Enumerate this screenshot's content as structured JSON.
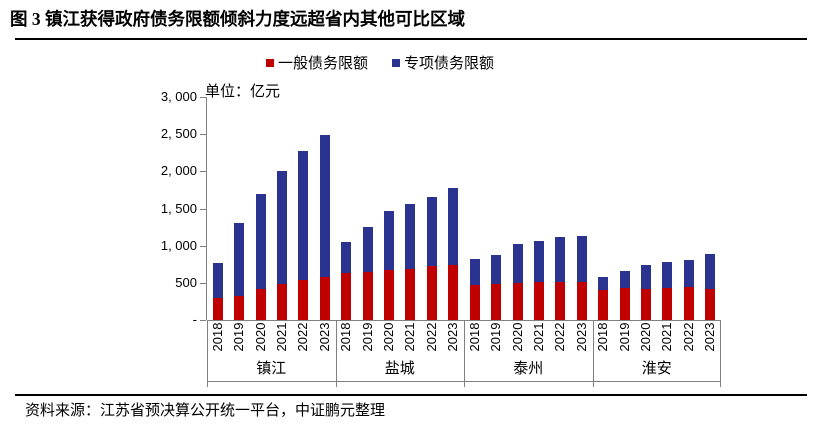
{
  "title": "图 3  镇江获得政府债务限额倾斜力度远超省内其他可比区域",
  "unit_label": "单位：亿元",
  "source": "资料来源：江苏省预决算公开统一平台，中证鹏元整理",
  "colors": {
    "general_debt": "#C00000",
    "special_debt": "#2A3390",
    "axis_line": "#808080",
    "rule_line": "#000000"
  },
  "legend": [
    {
      "label": "一般债务限额",
      "color": "#C00000"
    },
    {
      "label": "专项债务限额",
      "color": "#2A3390"
    }
  ],
  "chart_data": {
    "type": "bar",
    "stacked": true,
    "title": "图 3  镇江获得政府债务限额倾斜力度远超省内其他可比区域",
    "xlabel": "",
    "ylabel": "单位：亿元",
    "ylim": [
      0,
      3000
    ],
    "y_tick_interval": 500,
    "y_tick_labels_bottom_up": [
      "-",
      "500",
      "1, 000",
      "1, 500",
      "2, 000",
      "2, 500",
      "3, 000"
    ],
    "grid": false,
    "legend_position": "top",
    "groups": [
      "镇江",
      "盐城",
      "泰州",
      "淮安"
    ],
    "years": [
      "2018",
      "2019",
      "2020",
      "2021",
      "2022",
      "2023"
    ],
    "series": [
      {
        "name": "一般债务限额",
        "color": "#C00000",
        "values": {
          "镇江": [
            290,
            325,
            420,
            485,
            540,
            580
          ],
          "盐城": [
            635,
            650,
            675,
            690,
            730,
            745
          ],
          "泰州": [
            470,
            485,
            500,
            515,
            515,
            505
          ],
          "淮安": [
            405,
            430,
            420,
            430,
            445,
            420
          ]
        }
      },
      {
        "name": "专项债务限额",
        "color": "#2A3390",
        "values": {
          "镇江": [
            480,
            985,
            1280,
            1525,
            1740,
            1905
          ],
          "盐城": [
            420,
            605,
            795,
            875,
            930,
            1025
          ],
          "泰州": [
            350,
            390,
            525,
            550,
            605,
            630
          ],
          "淮安": [
            175,
            230,
            325,
            355,
            365,
            470
          ]
        }
      }
    ]
  }
}
